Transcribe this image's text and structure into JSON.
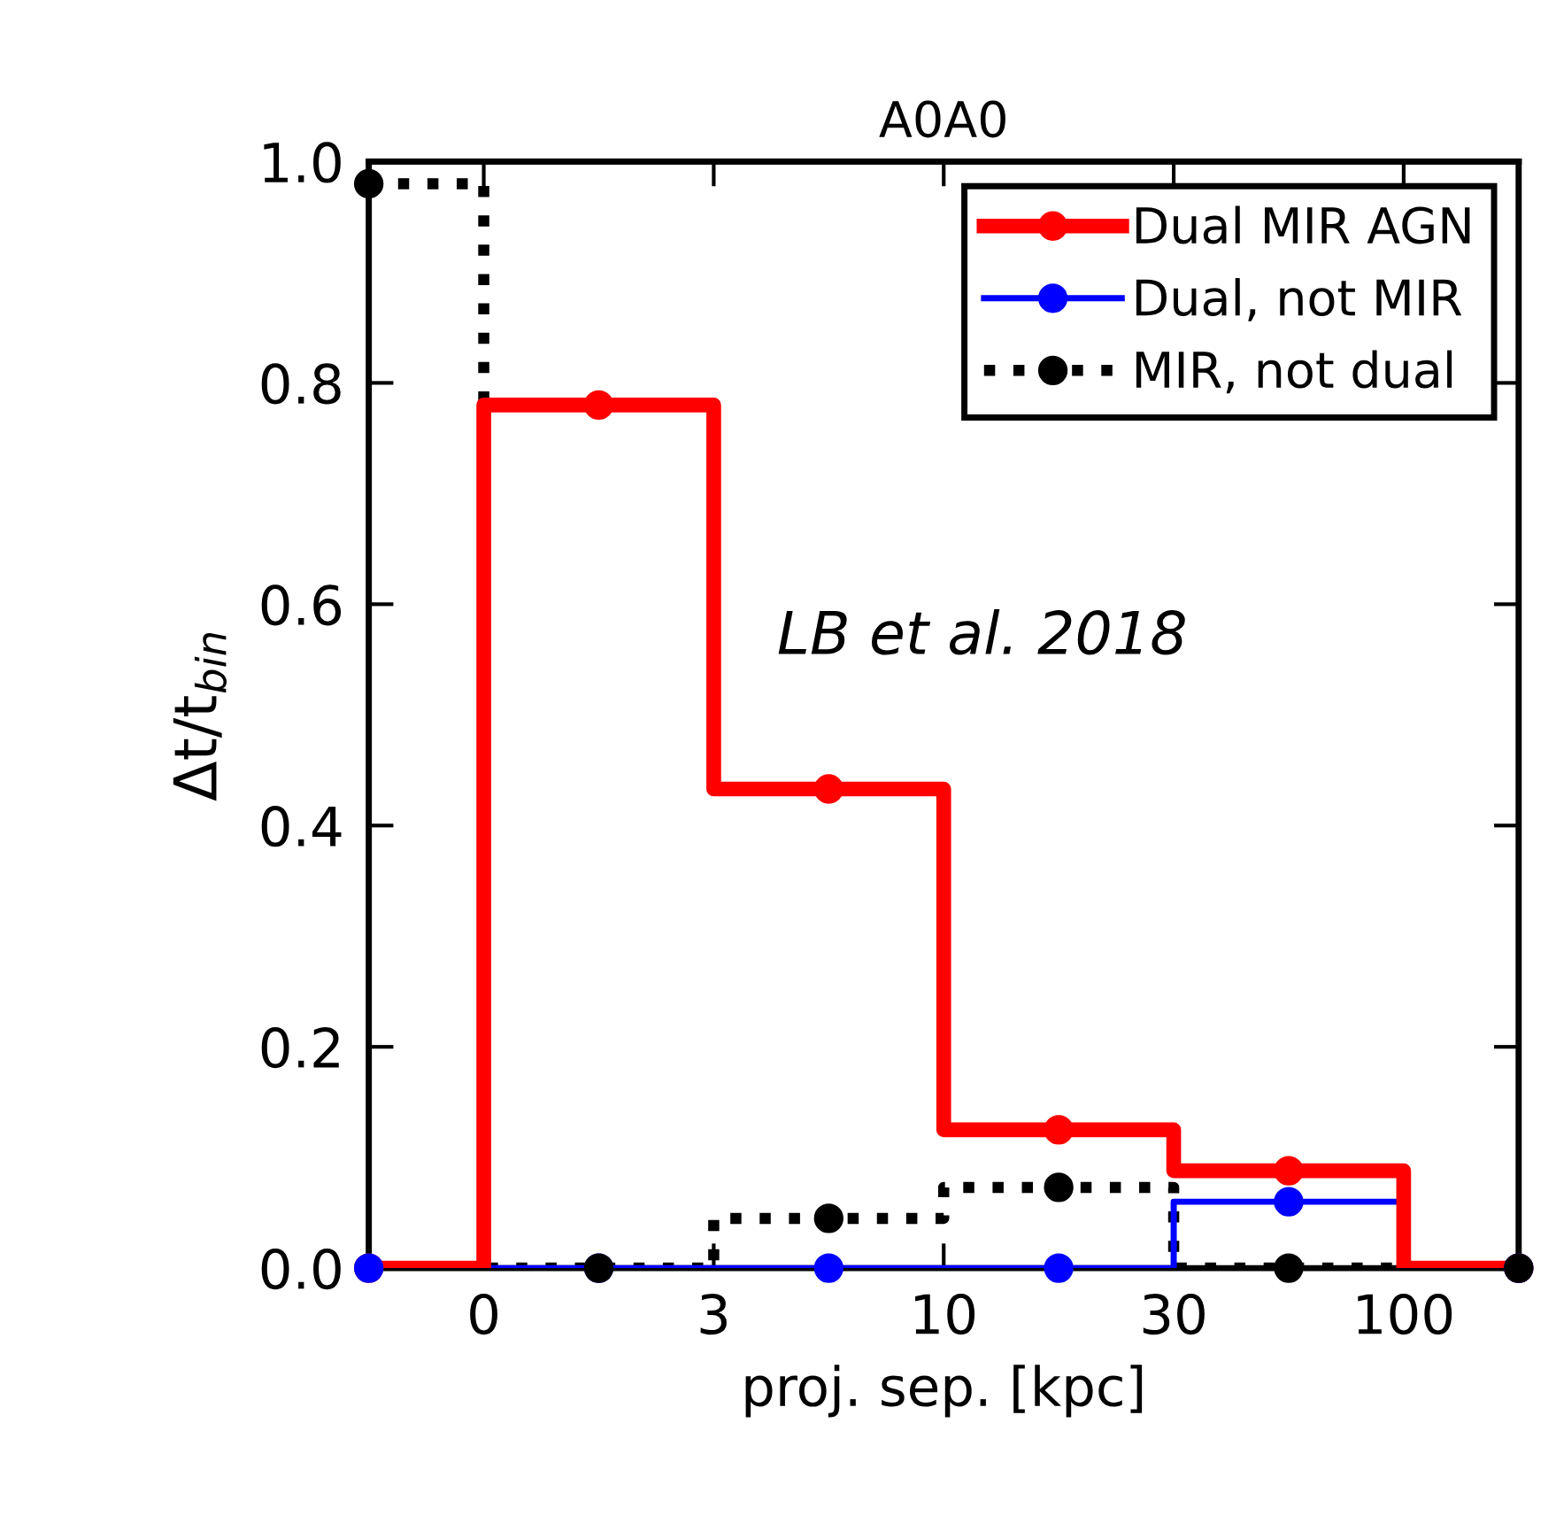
{
  "chart_data": {
    "type": "step",
    "title": "A0A0",
    "xlabel": "proj. sep. [kpc]",
    "ylabel": "Δt/t$_{bin}$",
    "annotations": [
      "LB et al. 2018"
    ],
    "categories": [
      null,
      "0",
      null,
      "3",
      null,
      "10",
      null,
      "30",
      null,
      "100",
      null
    ],
    "ylim": [
      0,
      1.0
    ],
    "yticks": [
      {
        "value": 0,
        "label": "0.0"
      },
      {
        "value": 0.2,
        "label": "0.2"
      },
      {
        "value": 0.4,
        "label": "0.4"
      },
      {
        "value": 0.6,
        "label": "0.6"
      },
      {
        "value": 0.8,
        "label": "0.8"
      },
      {
        "value": 1.0,
        "label": "1.0"
      }
    ],
    "grid": false,
    "legend": "top right",
    "marker": "circle",
    "series": [
      {
        "name": "Dual MIR AGN",
        "color": "#ff0000",
        "line_style": "solid",
        "values": [
          0,
          null,
          0.78,
          null,
          0.433,
          null,
          0.125,
          null,
          0.088,
          null,
          0
        ]
      },
      {
        "name": "Dual, not MIR",
        "color": "#0000ff",
        "line_style": "solid",
        "values": [
          0,
          null,
          0,
          null,
          0,
          null,
          0,
          null,
          0.06,
          null,
          0
        ]
      },
      {
        "name": "MIR, not dual",
        "color": "#000000",
        "line_style": "dotted",
        "values": [
          0.98,
          null,
          0,
          null,
          0.045,
          null,
          0.073,
          null,
          0,
          null,
          0
        ]
      }
    ]
  }
}
